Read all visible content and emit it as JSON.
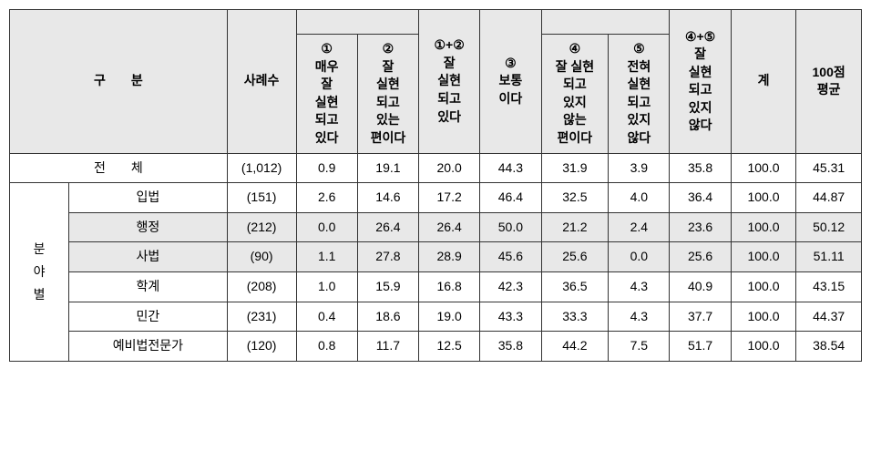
{
  "header": {
    "gubun": "구　　분",
    "cases": "사례수",
    "col1": "①\n매우\n잘\n실현\n되고\n있다",
    "col2": "②\n잘\n실현\n되고\n있는\n편이다",
    "col12": "①+②\n잘\n실현\n되고\n있다",
    "col3": "③\n보통\n이다",
    "col4": "④\n잘 실현\n되고\n있지\n않는\n편이다",
    "col5": "⑤\n전혀\n실현\n되고\n있지\n않다",
    "col45": "④+⑤\n잘\n실현\n되고\n있지\n않다",
    "total": "계",
    "avg": "100점\n평균"
  },
  "totalRow": {
    "label": "전　　체",
    "cases": "(1,012)",
    "c1": "0.9",
    "c2": "19.1",
    "c12": "20.0",
    "c3": "44.3",
    "c4": "31.9",
    "c5": "3.9",
    "c45": "35.8",
    "tot": "100.0",
    "avg": "45.31"
  },
  "groupLabel": "분\n야\n별",
  "rows": [
    {
      "label": "입법",
      "cases": "(151)",
      "c1": "2.6",
      "c2": "14.6",
      "c12": "17.2",
      "c3": "46.4",
      "c4": "32.5",
      "c5": "4.0",
      "c45": "36.4",
      "tot": "100.0",
      "avg": "44.87",
      "shaded": false
    },
    {
      "label": "행정",
      "cases": "(212)",
      "c1": "0.0",
      "c2": "26.4",
      "c12": "26.4",
      "c3": "50.0",
      "c4": "21.2",
      "c5": "2.4",
      "c45": "23.6",
      "tot": "100.0",
      "avg": "50.12",
      "shaded": true
    },
    {
      "label": "사법",
      "cases": "(90)",
      "c1": "1.1",
      "c2": "27.8",
      "c12": "28.9",
      "c3": "45.6",
      "c4": "25.6",
      "c5": "0.0",
      "c45": "25.6",
      "tot": "100.0",
      "avg": "51.11",
      "shaded": true
    },
    {
      "label": "학계",
      "cases": "(208)",
      "c1": "1.0",
      "c2": "15.9",
      "c12": "16.8",
      "c3": "42.3",
      "c4": "36.5",
      "c5": "4.3",
      "c45": "40.9",
      "tot": "100.0",
      "avg": "43.15",
      "shaded": false
    },
    {
      "label": "민간",
      "cases": "(231)",
      "c1": "0.4",
      "c2": "18.6",
      "c12": "19.0",
      "c3": "43.3",
      "c4": "33.3",
      "c5": "4.3",
      "c45": "37.7",
      "tot": "100.0",
      "avg": "44.37",
      "shaded": false
    },
    {
      "label": "예비법전문가",
      "cases": "(120)",
      "c1": "0.8",
      "c2": "11.7",
      "c12": "12.5",
      "c3": "35.8",
      "c4": "44.2",
      "c5": "7.5",
      "c45": "51.7",
      "tot": "100.0",
      "avg": "38.54",
      "shaded": false
    }
  ]
}
